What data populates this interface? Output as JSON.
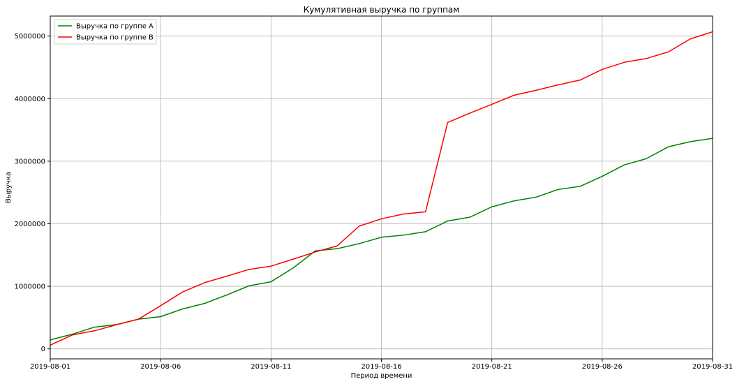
{
  "chart_data": {
    "type": "line",
    "title": "Кумулятивная выручка по группам",
    "xlabel": "Период времени",
    "ylabel": "Выручка",
    "x": [
      "2019-08-01",
      "2019-08-02",
      "2019-08-03",
      "2019-08-04",
      "2019-08-05",
      "2019-08-06",
      "2019-08-07",
      "2019-08-08",
      "2019-08-09",
      "2019-08-10",
      "2019-08-11",
      "2019-08-12",
      "2019-08-13",
      "2019-08-14",
      "2019-08-15",
      "2019-08-16",
      "2019-08-17",
      "2019-08-18",
      "2019-08-19",
      "2019-08-20",
      "2019-08-21",
      "2019-08-22",
      "2019-08-23",
      "2019-08-24",
      "2019-08-25",
      "2019-08-26",
      "2019-08-27",
      "2019-08-28",
      "2019-08-29",
      "2019-08-30",
      "2019-08-31"
    ],
    "xticks": [
      "2019-08-01",
      "2019-08-06",
      "2019-08-11",
      "2019-08-16",
      "2019-08-21",
      "2019-08-26",
      "2019-08-31"
    ],
    "xlim": [
      "2019-08-01",
      "2019-08-31"
    ],
    "yticks": [
      0,
      1000000,
      2000000,
      3000000,
      4000000,
      5000000
    ],
    "ylim": [
      -160000,
      5320000
    ],
    "grid": true,
    "legend_position": "upper-left",
    "series": [
      {
        "name": "Выручка по группе A",
        "color": "#008000",
        "values": [
          142800,
          234400,
          346900,
          388000,
          474400,
          515300,
          638300,
          727200,
          861500,
          1007800,
          1072500,
          1291800,
          1565800,
          1601500,
          1682500,
          1784200,
          1817600,
          1873000,
          2043800,
          2104100,
          2270300,
          2364700,
          2424700,
          2547200,
          2597600,
          2757900,
          2940400,
          3040500,
          3230600,
          3312700,
          3364700
        ]
      },
      {
        "name": "Выручка по группе B",
        "color": "#ff0000",
        "values": [
          59800,
          221800,
          288800,
          385600,
          475600,
          690500,
          910600,
          1059000,
          1162500,
          1269100,
          1321900,
          1433000,
          1548600,
          1647000,
          1963400,
          2078400,
          2155500,
          2191400,
          3618600,
          3768300,
          3908800,
          4053200,
          4133100,
          4219600,
          4297200,
          4466700,
          4580100,
          4641400,
          4748300,
          4956200,
          5068800
        ]
      }
    ]
  }
}
